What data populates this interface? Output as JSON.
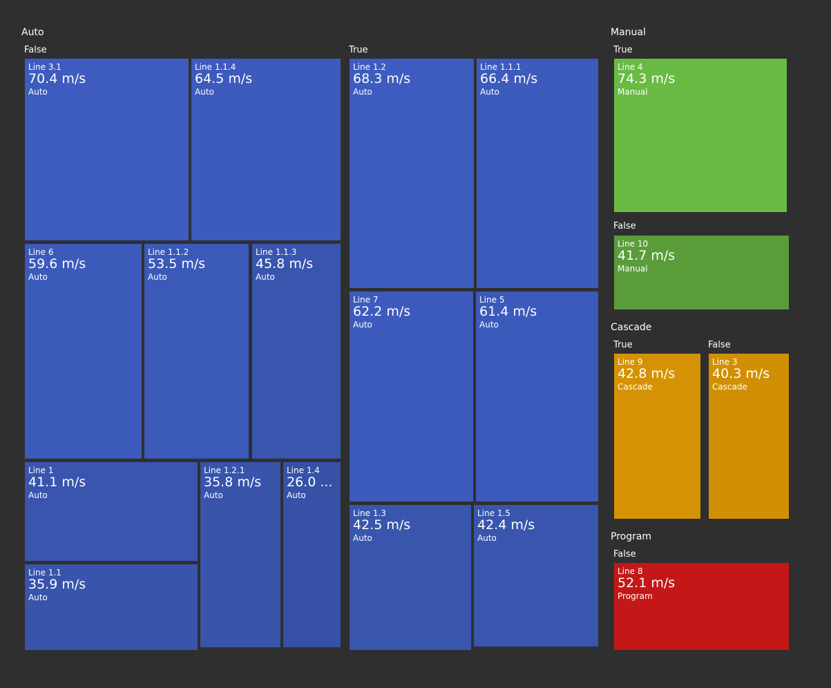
{
  "chart_data": {
    "type": "treemap",
    "unit": "m/s",
    "colors": {
      "Auto": "#3d5bbd",
      "Manual": "#6abb44",
      "Cascade": "#d49204",
      "Program": "#c41717",
      "background": "#2f2f2f"
    },
    "groups": [
      {
        "name": "Auto",
        "subgroups": [
          {
            "name": "False",
            "items": [
              {
                "name": "Line 3.1",
                "value": 70.4,
                "value_label": "70.4 m/s",
                "category": "Auto"
              },
              {
                "name": "Line 1.1.4",
                "value": 64.5,
                "value_label": "64.5 m/s",
                "category": "Auto"
              },
              {
                "name": "Line 6",
                "value": 59.6,
                "value_label": "59.6 m/s",
                "category": "Auto"
              },
              {
                "name": "Line 1.1.2",
                "value": 53.5,
                "value_label": "53.5 m/s",
                "category": "Auto"
              },
              {
                "name": "Line 1.1.3",
                "value": 45.8,
                "value_label": "45.8 m/s",
                "category": "Auto"
              },
              {
                "name": "Line 1",
                "value": 41.1,
                "value_label": "41.1 m/s",
                "category": "Auto"
              },
              {
                "name": "Line 1.1",
                "value": 35.9,
                "value_label": "35.9 m/s",
                "category": "Auto"
              },
              {
                "name": "Line 1.2.1",
                "value": 35.8,
                "value_label": "35.8 m/s",
                "category": "Auto"
              },
              {
                "name": "Line 1.4",
                "value": 26.0,
                "value_label": "26.0 ...",
                "category": "Auto"
              }
            ]
          },
          {
            "name": "True",
            "items": [
              {
                "name": "Line 1.2",
                "value": 68.3,
                "value_label": "68.3 m/s",
                "category": "Auto"
              },
              {
                "name": "Line 1.1.1",
                "value": 66.4,
                "value_label": "66.4 m/s",
                "category": "Auto"
              },
              {
                "name": "Line 7",
                "value": 62.2,
                "value_label": "62.2 m/s",
                "category": "Auto"
              },
              {
                "name": "Line 5",
                "value": 61.4,
                "value_label": "61.4 m/s",
                "category": "Auto"
              },
              {
                "name": "Line 1.3",
                "value": 42.5,
                "value_label": "42.5 m/s",
                "category": "Auto"
              },
              {
                "name": "Line 1.5",
                "value": 42.4,
                "value_label": "42.4 m/s",
                "category": "Auto"
              }
            ]
          }
        ]
      },
      {
        "name": "Manual",
        "subgroups": [
          {
            "name": "True",
            "items": [
              {
                "name": "Line 4",
                "value": 74.3,
                "value_label": "74.3 m/s",
                "category": "Manual"
              }
            ]
          },
          {
            "name": "False",
            "items": [
              {
                "name": "Line 10",
                "value": 41.7,
                "value_label": "41.7 m/s",
                "category": "Manual"
              }
            ]
          }
        ]
      },
      {
        "name": "Cascade",
        "subgroups": [
          {
            "name": "True",
            "items": [
              {
                "name": "Line 9",
                "value": 42.8,
                "value_label": "42.8 m/s",
                "category": "Cascade"
              }
            ]
          },
          {
            "name": "False",
            "items": [
              {
                "name": "Line 3",
                "value": 40.3,
                "value_label": "40.3 m/s",
                "category": "Cascade"
              }
            ]
          }
        ]
      },
      {
        "name": "Program",
        "subgroups": [
          {
            "name": "False",
            "items": [
              {
                "name": "Line 8",
                "value": 52.1,
                "value_label": "52.1 m/s",
                "category": "Program"
              }
            ]
          }
        ]
      }
    ]
  }
}
